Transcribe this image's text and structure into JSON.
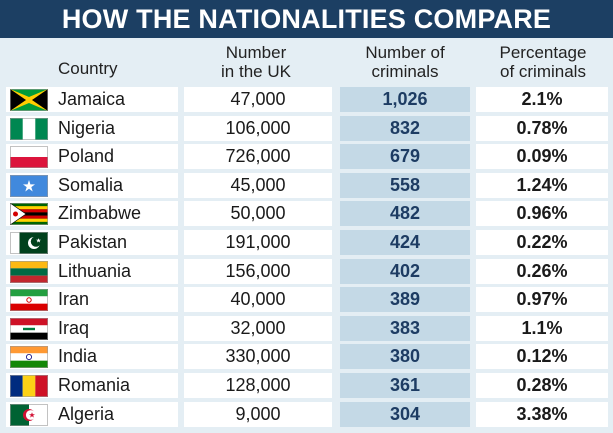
{
  "title": "HOW THE NATIONALITIES COMPARE",
  "headers": {
    "country": "Country",
    "number_line1": "Number",
    "number_line2": "in the UK",
    "criminals_line1": "Number of",
    "criminals_line2": "criminals",
    "percentage_line1": "Percentage",
    "percentage_line2": "of criminals"
  },
  "chart_data": {
    "type": "table",
    "title": "HOW THE NATIONALITIES COMPARE",
    "columns": [
      "Country",
      "Number in the UK",
      "Number of criminals",
      "Percentage of criminals"
    ],
    "rows": [
      {
        "country": "Jamaica",
        "number": "47,000",
        "criminals": "1,026",
        "percentage": "2.1%",
        "flag": "jamaica-flag"
      },
      {
        "country": "Nigeria",
        "number": "106,000",
        "criminals": "832",
        "percentage": "0.78%",
        "flag": "nigeria-flag"
      },
      {
        "country": "Poland",
        "number": "726,000",
        "criminals": "679",
        "percentage": "0.09%",
        "flag": "poland-flag"
      },
      {
        "country": "Somalia",
        "number": "45,000",
        "criminals": "558",
        "percentage": "1.24%",
        "flag": "somalia-flag"
      },
      {
        "country": "Zimbabwe",
        "number": "50,000",
        "criminals": "482",
        "percentage": "0.96%",
        "flag": "zimbabwe-flag"
      },
      {
        "country": "Pakistan",
        "number": "191,000",
        "criminals": "424",
        "percentage": "0.22%",
        "flag": "pakistan-flag"
      },
      {
        "country": "Lithuania",
        "number": "156,000",
        "criminals": "402",
        "percentage": "0.26%",
        "flag": "lithuania-flag"
      },
      {
        "country": "Iran",
        "number": "40,000",
        "criminals": "389",
        "percentage": "0.97%",
        "flag": "iran-flag"
      },
      {
        "country": "Iraq",
        "number": "32,000",
        "criminals": "383",
        "percentage": "1.1%",
        "flag": "iraq-flag"
      },
      {
        "country": "India",
        "number": "330,000",
        "criminals": "380",
        "percentage": "0.12%",
        "flag": "india-flag"
      },
      {
        "country": "Romania",
        "number": "128,000",
        "criminals": "361",
        "percentage": "0.28%",
        "flag": "romania-flag"
      },
      {
        "country": "Algeria",
        "number": "9,000",
        "criminals": "304",
        "percentage": "3.38%",
        "flag": "algeria-flag"
      }
    ]
  }
}
